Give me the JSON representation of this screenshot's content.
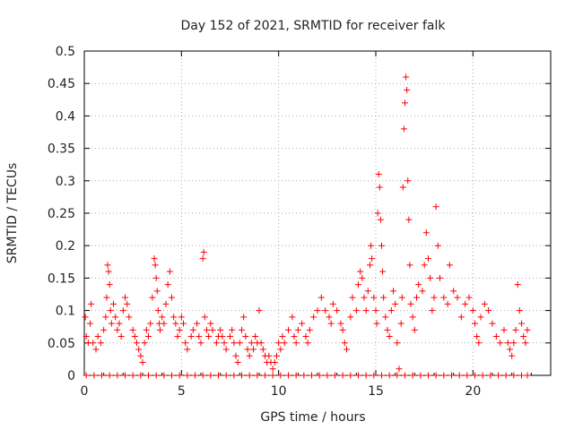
{
  "chart_data": {
    "type": "scatter",
    "title": "Day 152 of 2021, SRMTID for receiver falk",
    "xlabel": "GPS time / hours",
    "ylabel": "SRMTID / TECUs",
    "xlim": [
      0,
      24
    ],
    "ylim": [
      0,
      0.5
    ],
    "xticks": [
      0,
      5,
      10,
      15,
      20
    ],
    "xtick_labels": [
      "0",
      "5",
      "10",
      "15",
      "20"
    ],
    "yticks": [
      0,
      0.05,
      0.1,
      0.15,
      0.2,
      0.25,
      0.3,
      0.35,
      0.4,
      0.45,
      0.5
    ],
    "ytick_labels": [
      "0",
      "0.05",
      "0.1",
      "0.15",
      "0.2",
      "0.25",
      "0.3",
      "0.35",
      "0.4",
      "0.45",
      "0.5"
    ],
    "grid": true,
    "marker": "+",
    "color": "#ff0000",
    "series": [
      {
        "name": "SRMTID",
        "points": [
          [
            0.05,
            0.09
          ],
          [
            0.1,
            0.06
          ],
          [
            0.2,
            0.05
          ],
          [
            0.3,
            0.08
          ],
          [
            0.35,
            0.11
          ],
          [
            0.45,
            0.05
          ],
          [
            0.6,
            0.04
          ],
          [
            0.7,
            0.06
          ],
          [
            0.85,
            0.05
          ],
          [
            1.0,
            0.07
          ],
          [
            1.1,
            0.09
          ],
          [
            1.15,
            0.12
          ],
          [
            1.2,
            0.17
          ],
          [
            1.25,
            0.16
          ],
          [
            1.3,
            0.14
          ],
          [
            1.35,
            0.1
          ],
          [
            1.4,
            0.08
          ],
          [
            1.5,
            0.11
          ],
          [
            1.6,
            0.09
          ],
          [
            1.7,
            0.07
          ],
          [
            1.8,
            0.08
          ],
          [
            1.9,
            0.06
          ],
          [
            2.0,
            0.1
          ],
          [
            2.1,
            0.12
          ],
          [
            2.2,
            0.11
          ],
          [
            2.3,
            0.09
          ],
          [
            2.5,
            0.07
          ],
          [
            2.6,
            0.06
          ],
          [
            2.7,
            0.05
          ],
          [
            2.8,
            0.04
          ],
          [
            2.9,
            0.03
          ],
          [
            3.0,
            0.02
          ],
          [
            3.1,
            0.05
          ],
          [
            3.2,
            0.07
          ],
          [
            3.3,
            0.06
          ],
          [
            3.4,
            0.08
          ],
          [
            3.5,
            0.12
          ],
          [
            3.6,
            0.18
          ],
          [
            3.65,
            0.17
          ],
          [
            3.7,
            0.15
          ],
          [
            3.75,
            0.13
          ],
          [
            3.8,
            0.1
          ],
          [
            3.85,
            0.08
          ],
          [
            3.9,
            0.07
          ],
          [
            4.0,
            0.09
          ],
          [
            4.1,
            0.08
          ],
          [
            4.2,
            0.11
          ],
          [
            4.3,
            0.14
          ],
          [
            4.4,
            0.16
          ],
          [
            4.5,
            0.12
          ],
          [
            4.6,
            0.09
          ],
          [
            4.7,
            0.08
          ],
          [
            4.8,
            0.06
          ],
          [
            4.9,
            0.07
          ],
          [
            5.0,
            0.09
          ],
          [
            5.1,
            0.08
          ],
          [
            5.2,
            0.05
          ],
          [
            5.3,
            0.04
          ],
          [
            5.5,
            0.06
          ],
          [
            5.6,
            0.07
          ],
          [
            5.8,
            0.08
          ],
          [
            5.9,
            0.06
          ],
          [
            6.0,
            0.05
          ],
          [
            6.1,
            0.18
          ],
          [
            6.15,
            0.19
          ],
          [
            6.2,
            0.09
          ],
          [
            6.3,
            0.07
          ],
          [
            6.4,
            0.06
          ],
          [
            6.5,
            0.08
          ],
          [
            6.6,
            0.07
          ],
          [
            6.8,
            0.05
          ],
          [
            6.9,
            0.06
          ],
          [
            7.0,
            0.07
          ],
          [
            7.1,
            0.06
          ],
          [
            7.2,
            0.05
          ],
          [
            7.3,
            0.04
          ],
          [
            7.5,
            0.06
          ],
          [
            7.6,
            0.07
          ],
          [
            7.7,
            0.05
          ],
          [
            7.8,
            0.03
          ],
          [
            7.9,
            0.02
          ],
          [
            8.0,
            0.05
          ],
          [
            8.1,
            0.07
          ],
          [
            8.2,
            0.09
          ],
          [
            8.3,
            0.06
          ],
          [
            8.4,
            0.04
          ],
          [
            8.5,
            0.03
          ],
          [
            8.6,
            0.05
          ],
          [
            8.7,
            0.04
          ],
          [
            8.8,
            0.06
          ],
          [
            8.9,
            0.05
          ],
          [
            9.0,
            0.1
          ],
          [
            9.1,
            0.05
          ],
          [
            9.2,
            0.04
          ],
          [
            9.3,
            0.03
          ],
          [
            9.4,
            0.02
          ],
          [
            9.5,
            0.03
          ],
          [
            9.6,
            0.02
          ],
          [
            9.7,
            0.01
          ],
          [
            9.8,
            0.02
          ],
          [
            9.9,
            0.03
          ],
          [
            10.0,
            0.05
          ],
          [
            10.1,
            0.04
          ],
          [
            10.2,
            0.06
          ],
          [
            10.3,
            0.05
          ],
          [
            10.5,
            0.07
          ],
          [
            10.7,
            0.09
          ],
          [
            10.8,
            0.06
          ],
          [
            10.9,
            0.05
          ],
          [
            11.0,
            0.07
          ],
          [
            11.2,
            0.08
          ],
          [
            11.4,
            0.06
          ],
          [
            11.5,
            0.05
          ],
          [
            11.6,
            0.07
          ],
          [
            11.8,
            0.09
          ],
          [
            12.0,
            0.1
          ],
          [
            12.2,
            0.12
          ],
          [
            12.4,
            0.1
          ],
          [
            12.6,
            0.09
          ],
          [
            12.7,
            0.08
          ],
          [
            12.8,
            0.11
          ],
          [
            13.0,
            0.1
          ],
          [
            13.2,
            0.08
          ],
          [
            13.3,
            0.07
          ],
          [
            13.4,
            0.05
          ],
          [
            13.5,
            0.04
          ],
          [
            13.7,
            0.09
          ],
          [
            13.8,
            0.12
          ],
          [
            14.0,
            0.1
          ],
          [
            14.1,
            0.14
          ],
          [
            14.2,
            0.16
          ],
          [
            14.3,
            0.15
          ],
          [
            14.4,
            0.12
          ],
          [
            14.5,
            0.1
          ],
          [
            14.6,
            0.13
          ],
          [
            14.7,
            0.17
          ],
          [
            14.75,
            0.2
          ],
          [
            14.8,
            0.18
          ],
          [
            14.9,
            0.12
          ],
          [
            15.0,
            0.1
          ],
          [
            15.05,
            0.08
          ],
          [
            15.1,
            0.25
          ],
          [
            15.15,
            0.31
          ],
          [
            15.2,
            0.29
          ],
          [
            15.25,
            0.24
          ],
          [
            15.3,
            0.2
          ],
          [
            15.35,
            0.16
          ],
          [
            15.4,
            0.12
          ],
          [
            15.5,
            0.09
          ],
          [
            15.6,
            0.07
          ],
          [
            15.7,
            0.06
          ],
          [
            15.8,
            0.1
          ],
          [
            15.9,
            0.13
          ],
          [
            16.0,
            0.11
          ],
          [
            16.1,
            0.05
          ],
          [
            16.2,
            0.01
          ],
          [
            16.3,
            0.08
          ],
          [
            16.35,
            0.12
          ],
          [
            16.4,
            0.29
          ],
          [
            16.45,
            0.38
          ],
          [
            16.5,
            0.42
          ],
          [
            16.55,
            0.46
          ],
          [
            16.6,
            0.44
          ],
          [
            16.65,
            0.3
          ],
          [
            16.7,
            0.24
          ],
          [
            16.75,
            0.17
          ],
          [
            16.8,
            0.11
          ],
          [
            16.9,
            0.09
          ],
          [
            17.0,
            0.07
          ],
          [
            17.1,
            0.12
          ],
          [
            17.2,
            0.14
          ],
          [
            17.4,
            0.13
          ],
          [
            17.5,
            0.17
          ],
          [
            17.6,
            0.22
          ],
          [
            17.7,
            0.18
          ],
          [
            17.8,
            0.15
          ],
          [
            17.9,
            0.1
          ],
          [
            18.0,
            0.12
          ],
          [
            18.1,
            0.26
          ],
          [
            18.2,
            0.2
          ],
          [
            18.3,
            0.15
          ],
          [
            18.5,
            0.12
          ],
          [
            18.7,
            0.11
          ],
          [
            18.8,
            0.17
          ],
          [
            19.0,
            0.13
          ],
          [
            19.2,
            0.12
          ],
          [
            19.4,
            0.09
          ],
          [
            19.6,
            0.11
          ],
          [
            19.8,
            0.12
          ],
          [
            20.0,
            0.1
          ],
          [
            20.1,
            0.08
          ],
          [
            20.2,
            0.06
          ],
          [
            20.3,
            0.05
          ],
          [
            20.4,
            0.09
          ],
          [
            20.6,
            0.11
          ],
          [
            20.8,
            0.1
          ],
          [
            21.0,
            0.08
          ],
          [
            21.2,
            0.06
          ],
          [
            21.4,
            0.05
          ],
          [
            21.6,
            0.07
          ],
          [
            21.8,
            0.05
          ],
          [
            21.9,
            0.04
          ],
          [
            22.0,
            0.03
          ],
          [
            22.1,
            0.05
          ],
          [
            22.2,
            0.07
          ],
          [
            22.3,
            0.14
          ],
          [
            22.4,
            0.1
          ],
          [
            22.5,
            0.08
          ],
          [
            22.6,
            0.06
          ],
          [
            22.7,
            0.05
          ],
          [
            22.8,
            0.07
          ],
          [
            0.1,
            0
          ],
          [
            0.5,
            0
          ],
          [
            0.9,
            0
          ],
          [
            1.3,
            0
          ],
          [
            1.7,
            0
          ],
          [
            2.1,
            0
          ],
          [
            2.5,
            0
          ],
          [
            2.9,
            0
          ],
          [
            3.3,
            0
          ],
          [
            3.7,
            0
          ],
          [
            4.1,
            0
          ],
          [
            4.5,
            0
          ],
          [
            4.9,
            0
          ],
          [
            5.3,
            0
          ],
          [
            5.7,
            0
          ],
          [
            6.1,
            0
          ],
          [
            6.5,
            0
          ],
          [
            6.9,
            0
          ],
          [
            7.3,
            0
          ],
          [
            7.7,
            0
          ],
          [
            8.1,
            0
          ],
          [
            8.5,
            0
          ],
          [
            8.9,
            0
          ],
          [
            9.3,
            0
          ],
          [
            9.7,
            0
          ],
          [
            10.1,
            0
          ],
          [
            10.5,
            0
          ],
          [
            10.9,
            0
          ],
          [
            11.3,
            0
          ],
          [
            11.7,
            0
          ],
          [
            12.1,
            0
          ],
          [
            12.5,
            0
          ],
          [
            12.9,
            0
          ],
          [
            13.3,
            0
          ],
          [
            13.7,
            0
          ],
          [
            14.1,
            0
          ],
          [
            14.5,
            0
          ],
          [
            14.9,
            0
          ],
          [
            15.3,
            0
          ],
          [
            15.7,
            0
          ],
          [
            16.1,
            0
          ],
          [
            16.5,
            0
          ],
          [
            16.9,
            0
          ],
          [
            17.3,
            0
          ],
          [
            17.7,
            0
          ],
          [
            18.1,
            0
          ],
          [
            18.5,
            0
          ],
          [
            18.9,
            0
          ],
          [
            19.3,
            0
          ],
          [
            19.7,
            0
          ],
          [
            20.1,
            0
          ],
          [
            20.5,
            0
          ],
          [
            20.9,
            0
          ],
          [
            21.3,
            0
          ],
          [
            21.7,
            0
          ],
          [
            22.1,
            0
          ],
          [
            22.5,
            0
          ],
          [
            22.8,
            0
          ]
        ]
      }
    ]
  }
}
